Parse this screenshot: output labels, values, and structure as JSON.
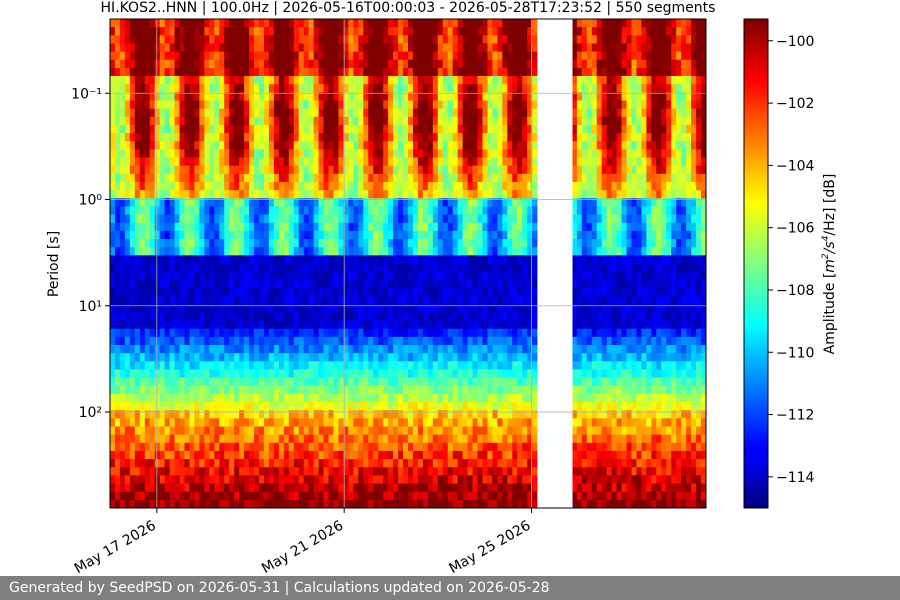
{
  "chart_data": {
    "type": "heatmap",
    "title": "HI.KOS2..HNN | 100.0Hz | 2026-05-16T00:00:03 - 2026-05-28T17:23:52 | 550 segments",
    "ylabel": "Period [s]",
    "y_scale": "log",
    "y_inverted": true,
    "y_range": [
      0.02,
      800
    ],
    "y_ticks": [
      {
        "value": 0.1,
        "label": "10⁻¹"
      },
      {
        "value": 1,
        "label": "10⁰"
      },
      {
        "value": 10,
        "label": "10¹"
      },
      {
        "value": 100,
        "label": "10²"
      }
    ],
    "x_range": [
      "2026-05-16T00:00:03",
      "2026-05-28T17:23:52"
    ],
    "x_ticks": [
      {
        "value": "2026-05-17",
        "label": "May 17 2026"
      },
      {
        "value": "2026-05-21",
        "label": "May 21 2026"
      },
      {
        "value": "2026-05-25",
        "label": "May 25 2026"
      }
    ],
    "grid": true,
    "colorbar": {
      "label": "Amplitude [m²/s⁴/Hz] [dB]",
      "label_parts": {
        "prefix": "Amplitude [",
        "base1": "m",
        "exp1": "2",
        "mid": "/s",
        "exp2": "4",
        "suffix": "/Hz] [dB]"
      },
      "range": [
        -115.0,
        -99.3
      ],
      "ticks": [
        -100,
        -102,
        -104,
        -106,
        -108,
        -110,
        -112,
        -114
      ],
      "colormap": "jet"
    },
    "data_gap": {
      "start": "2026-05-25T03:00:00",
      "end": "2026-05-25T21:00:00"
    }
  },
  "footer": {
    "text": "Generated by SeedPSD on 2026-05-31 | Calculations updated on 2026-05-28"
  }
}
